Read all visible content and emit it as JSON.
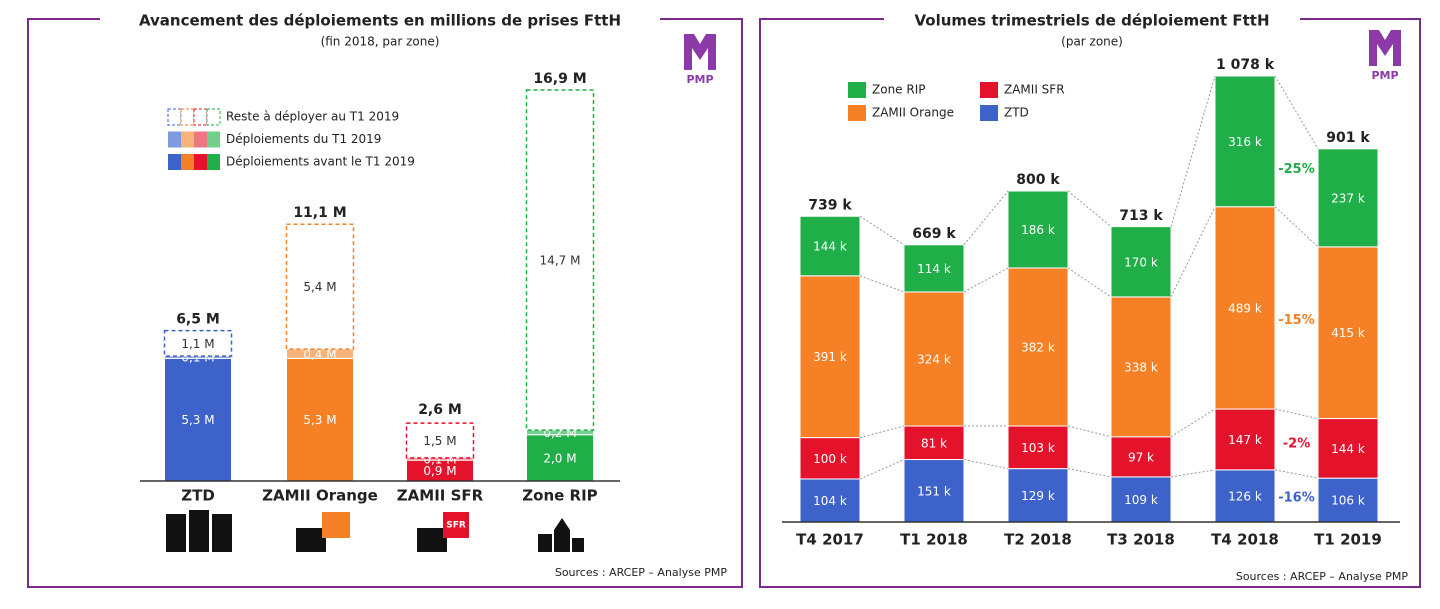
{
  "chart_data": [
    {
      "type": "bar",
      "stacked": true,
      "title": "Avancement des déploiements en millions de prises FttH",
      "subtitle": "(fin 2018, par zone)",
      "categories": [
        "ZTD",
        "ZAMII Orange",
        "ZAMII SFR",
        "Zone RIP"
      ],
      "series": [
        {
          "name": "Déploiements avant le T1 2019",
          "color": [
            "#3d62c9",
            "#f58025",
            "#e4122b",
            "#1fae47"
          ],
          "values": [
            5.3,
            5.3,
            0.9,
            2.0
          ],
          "value_labels": [
            "5,3 M",
            "5,3 M",
            "0,9 M",
            "2,0 M"
          ]
        },
        {
          "name": "Déploiements du T1 2019",
          "color": [
            "#7f9be0",
            "#f9b27a",
            "#f07585",
            "#72d08c"
          ],
          "values": [
            0.1,
            0.4,
            0.1,
            0.2
          ],
          "value_labels": [
            "0,1 M",
            "0,4 M",
            "0,1 M",
            "0,2 M"
          ]
        },
        {
          "name": "Reste à déployer au T1 2019",
          "dashed": true,
          "color": [
            "#3d62c9",
            "#f58025",
            "#e4122b",
            "#1fae47"
          ],
          "values": [
            1.1,
            5.4,
            1.5,
            14.7
          ],
          "value_labels": [
            "1,1 M",
            "5,4 M",
            "1,5 M",
            "14,7 M"
          ]
        }
      ],
      "totals": {
        "values": [
          6.5,
          11.1,
          2.6,
          16.9
        ],
        "value_labels": [
          "6,5 M",
          "11,1 M",
          "2,6 M",
          "16,9 M"
        ]
      },
      "sfr_logo": "SFR",
      "logo": "PMP",
      "source": "Sources : ARCEP – Analyse PMP"
    },
    {
      "type": "bar",
      "stacked": true,
      "title": "Volumes trimestriels de déploiement FttH",
      "subtitle": "(par zone)",
      "categories": [
        "T4 2017",
        "T1 2018",
        "T2 2018",
        "T3 2018",
        "T4 2018",
        "T1 2019"
      ],
      "series": [
        {
          "name": "ZTD",
          "color": "#3d62c9",
          "values": [
            104,
            151,
            129,
            109,
            126,
            106
          ],
          "value_labels": [
            "104 k",
            "151 k",
            "129 k",
            "109 k",
            "126 k",
            "106 k"
          ],
          "annotation": "-16%"
        },
        {
          "name": "ZAMII SFR",
          "color": "#e4122b",
          "values": [
            100,
            81,
            103,
            97,
            147,
            144
          ],
          "value_labels": [
            "100 k",
            "81 k",
            "103 k",
            "97 k",
            "147 k",
            "144 k"
          ],
          "annotation": "-2%"
        },
        {
          "name": "ZAMII Orange",
          "color": "#f58025",
          "values": [
            391,
            324,
            382,
            338,
            489,
            415
          ],
          "value_labels": [
            "391 k",
            "324 k",
            "382 k",
            "338 k",
            "489 k",
            "415 k"
          ],
          "annotation": "-15%"
        },
        {
          "name": "Zone RIP",
          "color": "#1fae47",
          "values": [
            144,
            114,
            186,
            170,
            316,
            237
          ],
          "value_labels": [
            "144 k",
            "114 k",
            "186 k",
            "170 k",
            "316 k",
            "237 k"
          ],
          "annotation": "-25%"
        }
      ],
      "totals": {
        "values": [
          739,
          669,
          800,
          713,
          1078,
          901
        ],
        "value_labels": [
          "739 k",
          "669 k",
          "800 k",
          "713 k",
          "1 078 k",
          "901 k"
        ]
      },
      "logo": "PMP",
      "source": "Sources : ARCEP – Analyse PMP"
    }
  ]
}
